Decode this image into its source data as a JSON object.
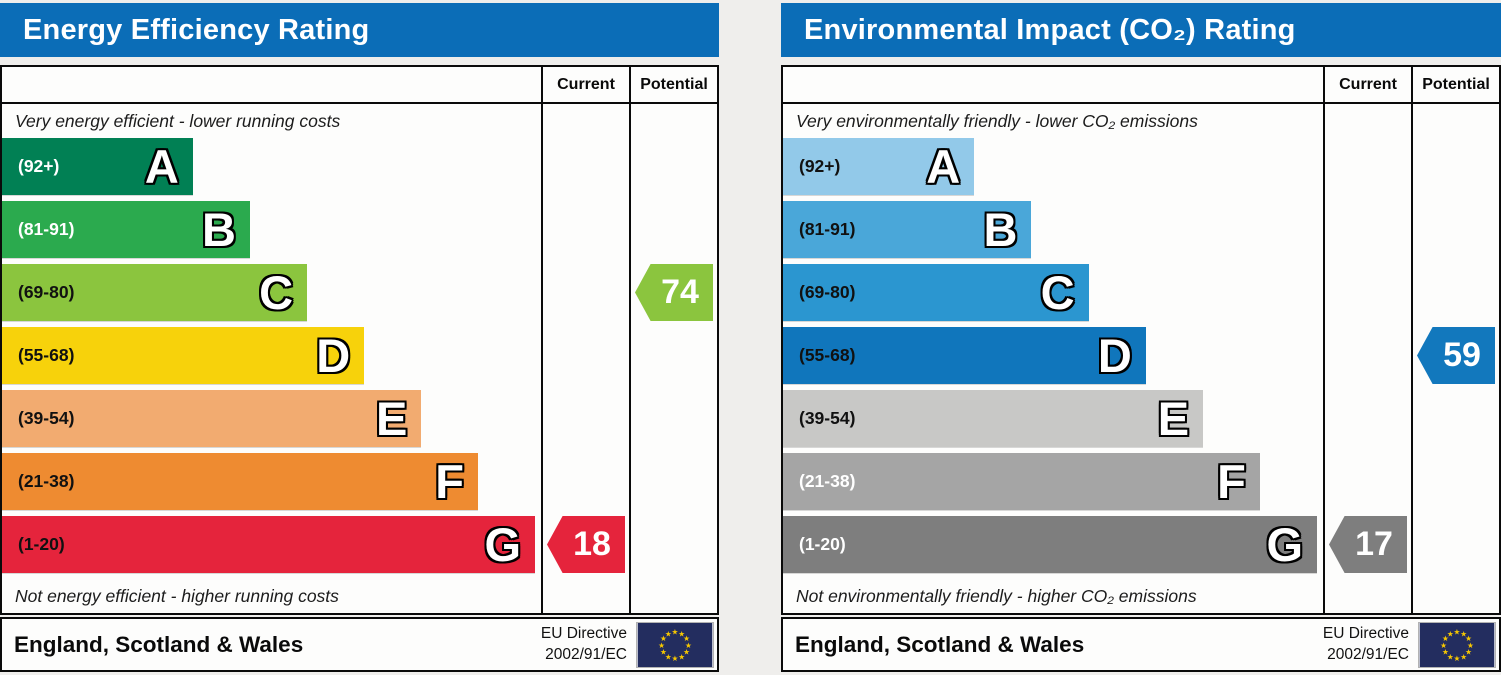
{
  "theme": {
    "page_bg": "#efeeec",
    "header_blue": "#0b6db7",
    "flag_navy": "#232d5f",
    "star_gold": "#f8c800"
  },
  "panels": [
    {
      "title": "Energy Efficiency Rating",
      "header": {
        "current": "Current",
        "potential": "Potential"
      },
      "captions": {
        "top": "Very energy efficient - lower running costs",
        "bottom": "Not energy efficient - higher running costs"
      },
      "bands": [
        {
          "letter": "A",
          "range": "(92+)",
          "color": "#018054",
          "label_color": "#ffffff",
          "width_pct": 35.4
        },
        {
          "letter": "B",
          "range": "(81-91)",
          "color": "#2baa4e",
          "label_color": "#ffffff",
          "width_pct": 46.0
        },
        {
          "letter": "C",
          "range": "(69-80)",
          "color": "#8bc53e",
          "label_color": "#111111",
          "width_pct": 56.6
        },
        {
          "letter": "D",
          "range": "(55-68)",
          "color": "#f7d20b",
          "label_color": "#111111",
          "width_pct": 67.2
        },
        {
          "letter": "E",
          "range": "(39-54)",
          "color": "#f2ab70",
          "label_color": "#111111",
          "width_pct": 77.8
        },
        {
          "letter": "F",
          "range": "(21-38)",
          "color": "#ee8b31",
          "label_color": "#111111",
          "width_pct": 88.3
        },
        {
          "letter": "G",
          "range": "(1-20)",
          "color": "#e5243c",
          "label_color": "#111111",
          "width_pct": 98.9
        }
      ],
      "markers": {
        "current": {
          "value": "18",
          "color": "#e5243c",
          "row": 6
        },
        "potential": {
          "value": "74",
          "color": "#8bc53e",
          "row": 2
        }
      },
      "footer": {
        "region": "England, Scotland & Wales",
        "directive": [
          "EU Directive",
          "2002/91/EC"
        ]
      }
    },
    {
      "title": "Environmental Impact (CO₂) Rating",
      "header": {
        "current": "Current",
        "potential": "Potential"
      },
      "captions": {
        "top": "Very environmentally friendly - lower CO₂ emissions",
        "bottom": "Not environmentally friendly - higher CO₂ emissions"
      },
      "bands": [
        {
          "letter": "A",
          "range": "(92+)",
          "color": "#92c9e9",
          "label_color": "#111111",
          "width_pct": 35.4
        },
        {
          "letter": "B",
          "range": "(81-91)",
          "color": "#4aa7d9",
          "label_color": "#111111",
          "width_pct": 46.0
        },
        {
          "letter": "C",
          "range": "(69-80)",
          "color": "#2b96d0",
          "label_color": "#111111",
          "width_pct": 56.6
        },
        {
          "letter": "D",
          "range": "(55-68)",
          "color": "#1076bc",
          "label_color": "#111111",
          "width_pct": 67.2
        },
        {
          "letter": "E",
          "range": "(39-54)",
          "color": "#c8c8c6",
          "label_color": "#111111",
          "width_pct": 77.8
        },
        {
          "letter": "F",
          "range": "(21-38)",
          "color": "#a5a5a5",
          "label_color": "#ffffff",
          "width_pct": 88.3
        },
        {
          "letter": "G",
          "range": "(1-20)",
          "color": "#7e7e7e",
          "label_color": "#ffffff",
          "width_pct": 98.9
        }
      ],
      "markers": {
        "current": {
          "value": "17",
          "color": "#7e7e7e",
          "row": 6
        },
        "potential": {
          "value": "59",
          "color": "#1278bd",
          "row": 3
        }
      },
      "footer": {
        "region": "England, Scotland & Wales",
        "directive": [
          "EU Directive",
          "2002/91/EC"
        ]
      }
    }
  ],
  "chart_data": [
    {
      "type": "bar",
      "title": "Energy Efficiency Rating",
      "orientation": "horizontal",
      "categories": [
        "A (92+)",
        "B (81-91)",
        "C (69-80)",
        "D (55-68)",
        "E (39-54)",
        "F (21-38)",
        "G (1-20)"
      ],
      "values": [
        35.4,
        46.0,
        56.6,
        67.2,
        77.8,
        88.3,
        98.9
      ],
      "value_unit": "percent of band area width",
      "band_colors": [
        "#018054",
        "#2baa4e",
        "#8bc53e",
        "#f7d20b",
        "#f2ab70",
        "#ee8b31",
        "#e5243c"
      ],
      "annotations": {
        "current": 18,
        "current_band": "G",
        "potential": 74,
        "potential_band": "C"
      },
      "legend": [
        "Current",
        "Potential"
      ],
      "top_caption": "Very energy efficient - lower running costs",
      "bottom_caption": "Not energy efficient - higher running costs",
      "footnote": "England, Scotland & Wales — EU Directive 2002/91/EC"
    },
    {
      "type": "bar",
      "title": "Environmental Impact (CO₂) Rating",
      "orientation": "horizontal",
      "categories": [
        "A (92+)",
        "B (81-91)",
        "C (69-80)",
        "D (55-68)",
        "E (39-54)",
        "F (21-38)",
        "G (1-20)"
      ],
      "values": [
        35.4,
        46.0,
        56.6,
        67.2,
        77.8,
        88.3,
        98.9
      ],
      "value_unit": "percent of band area width",
      "band_colors": [
        "#92c9e9",
        "#4aa7d9",
        "#2b96d0",
        "#1076bc",
        "#c8c8c6",
        "#a5a5a5",
        "#7e7e7e"
      ],
      "annotations": {
        "current": 17,
        "current_band": "G",
        "potential": 59,
        "potential_band": "D"
      },
      "legend": [
        "Current",
        "Potential"
      ],
      "top_caption": "Very environmentally friendly - lower CO₂ emissions",
      "bottom_caption": "Not environmentally friendly - higher CO₂ emissions",
      "footnote": "England, Scotland & Wales — EU Directive 2002/91/EC"
    }
  ]
}
